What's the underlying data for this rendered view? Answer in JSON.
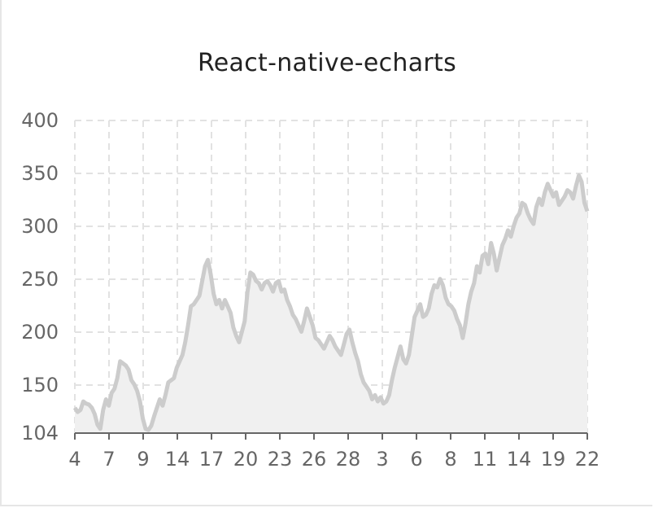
{
  "chart_data": {
    "type": "area",
    "title": "React-native-echarts",
    "x_tick_labels": [
      "4",
      "7",
      "9",
      "14",
      "17",
      "20",
      "23",
      "26",
      "28",
      "3",
      "6",
      "8",
      "11",
      "14",
      "19",
      "22"
    ],
    "y_tick_labels": [
      "400",
      "350",
      "300",
      "250",
      "200",
      "150",
      "104"
    ],
    "ylim": [
      104,
      400
    ],
    "grid": true,
    "line_color": "#cccccc",
    "area_color": "#f0f0f0",
    "values": [
      128,
      124,
      126,
      134,
      132,
      131,
      128,
      122,
      112,
      108,
      126,
      136,
      130,
      142,
      146,
      156,
      172,
      170,
      168,
      164,
      154,
      150,
      144,
      134,
      118,
      108,
      107,
      111,
      120,
      128,
      136,
      130,
      140,
      152,
      154,
      156,
      166,
      172,
      178,
      190,
      206,
      224,
      226,
      230,
      234,
      248,
      262,
      268,
      254,
      236,
      226,
      230,
      222,
      230,
      224,
      218,
      204,
      196,
      190,
      200,
      210,
      238,
      256,
      254,
      248,
      246,
      240,
      246,
      248,
      244,
      238,
      246,
      248,
      238,
      240,
      230,
      224,
      216,
      212,
      206,
      200,
      210,
      222,
      214,
      206,
      194,
      192,
      188,
      184,
      190,
      196,
      192,
      186,
      182,
      178,
      188,
      198,
      202,
      190,
      180,
      172,
      160,
      152,
      148,
      144,
      136,
      140,
      134,
      138,
      132,
      134,
      140,
      154,
      166,
      176,
      186,
      174,
      170,
      178,
      196,
      214,
      220,
      226,
      214,
      216,
      222,
      236,
      244,
      242,
      250,
      244,
      232,
      226,
      224,
      220,
      212,
      206,
      194,
      208,
      226,
      238,
      246,
      262,
      256,
      272,
      274,
      264,
      284,
      274,
      258,
      270,
      282,
      288,
      296,
      290,
      300,
      308,
      312,
      322,
      320,
      312,
      306,
      302,
      318,
      326,
      320,
      332,
      340,
      334,
      328,
      332,
      320,
      324,
      328,
      334,
      332,
      326,
      338,
      348,
      342,
      322,
      314
    ]
  }
}
